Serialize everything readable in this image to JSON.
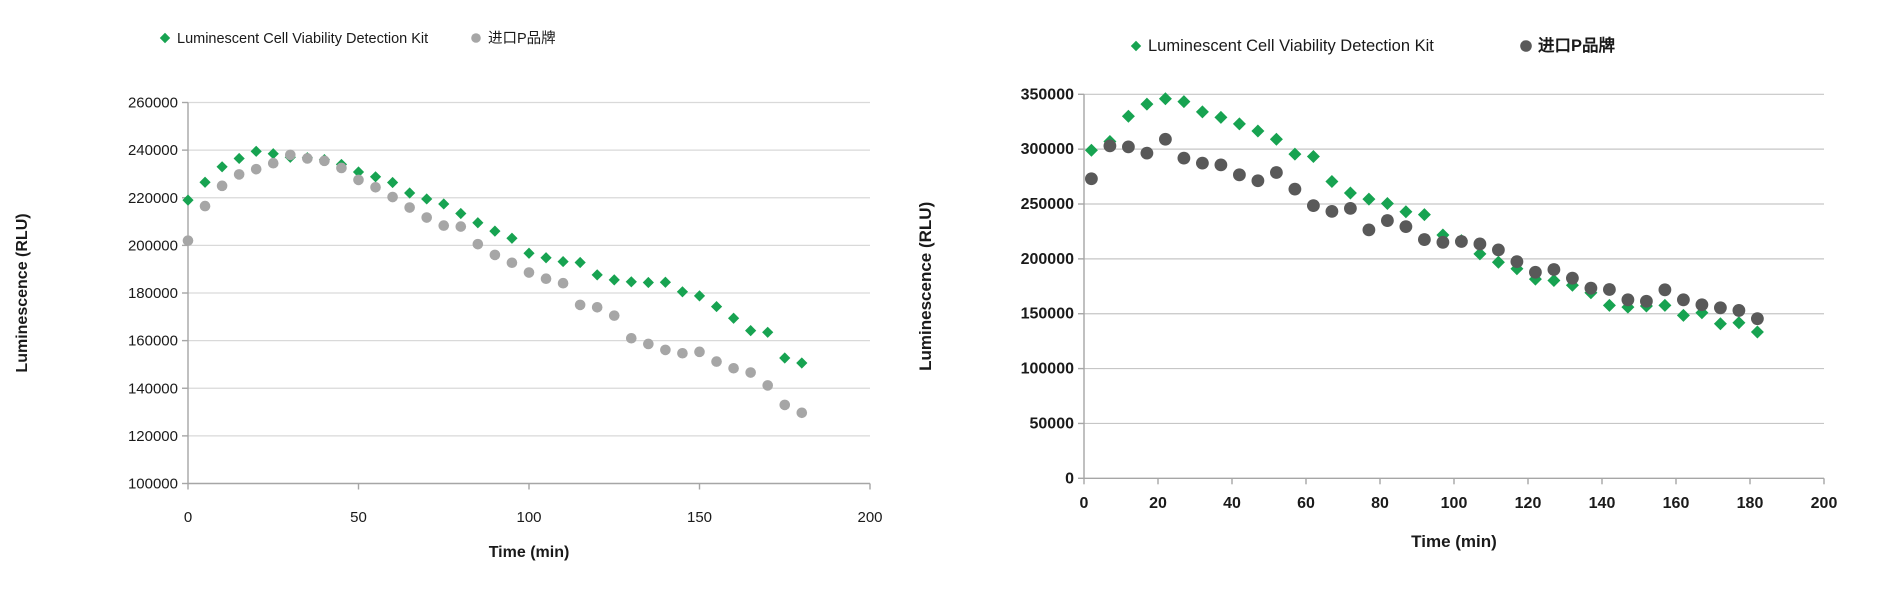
{
  "page": {
    "background": "#ffffff"
  },
  "colors": {
    "green": "#17A351",
    "light_gray": "#A6A6A6",
    "dark_gray": "#595959",
    "gridline_left": "#D9D9D9",
    "gridline_right": "#C6C6C6",
    "axis": "#A6A6A6",
    "text": "#1a1a1a"
  },
  "chart_data": [
    {
      "type": "scatter",
      "title": "",
      "xlabel": "Time (min)",
      "ylabel": "Luminescence (RLU)",
      "xlim": [
        0,
        200
      ],
      "xticks": [
        0,
        50,
        100,
        150,
        200
      ],
      "ylim": [
        100000,
        260000
      ],
      "yticks": [
        100000,
        120000,
        140000,
        160000,
        180000,
        200000,
        220000,
        240000,
        260000
      ],
      "grid": true,
      "legend_position": "top",
      "x": [
        0,
        5,
        10,
        15,
        20,
        25,
        30,
        35,
        40,
        45,
        50,
        55,
        60,
        65,
        70,
        75,
        80,
        85,
        90,
        95,
        100,
        105,
        110,
        115,
        120,
        125,
        130,
        135,
        140,
        145,
        150,
        155,
        160,
        165,
        170,
        175,
        180
      ],
      "series": [
        {
          "name": "Luminescent Cell Viability Detection Kit",
          "marker": "diamond",
          "color": "#17A351",
          "values": [
            219000,
            226500,
            233000,
            236500,
            239500,
            238500,
            237000,
            236800,
            236000,
            234000,
            230800,
            228800,
            226400,
            222000,
            219500,
            217400,
            213400,
            209500,
            206000,
            203000,
            196700,
            194800,
            193200,
            192800,
            187600,
            185500,
            184700,
            184400,
            184500,
            180500,
            178800,
            174300,
            169400,
            164200,
            163500,
            152700,
            150600
          ]
        },
        {
          "name": "进口P品牌",
          "marker": "circle",
          "color": "#A6A6A6",
          "values": [
            202000,
            216500,
            225000,
            229800,
            232000,
            234500,
            238000,
            236500,
            235500,
            232500,
            227500,
            224400,
            220300,
            215900,
            211700,
            208300,
            207900,
            200500,
            196000,
            192700,
            188600,
            186000,
            184100,
            175000,
            174000,
            170500,
            161000,
            158600,
            156100,
            154700,
            155300,
            151200,
            148400,
            146600,
            141200,
            133000,
            129700
          ]
        }
      ]
    },
    {
      "type": "scatter",
      "title": "",
      "xlabel": "Time  (min)",
      "ylabel": "Luminescence  (RLU)",
      "xlim": [
        0,
        200
      ],
      "xticks": [
        0,
        20,
        40,
        60,
        80,
        100,
        120,
        140,
        160,
        180,
        200
      ],
      "ylim": [
        0,
        350000
      ],
      "yticks": [
        0,
        50000,
        100000,
        150000,
        200000,
        250000,
        300000,
        350000
      ],
      "grid": true,
      "legend_position": "top",
      "x": [
        2,
        7,
        12,
        17,
        22,
        27,
        32,
        37,
        42,
        47,
        52,
        57,
        62,
        67,
        72,
        77,
        82,
        87,
        92,
        97,
        102,
        107,
        112,
        117,
        122,
        127,
        132,
        137,
        142,
        147,
        152,
        157,
        162,
        167,
        172,
        177,
        182
      ],
      "series": [
        {
          "name": "Luminescent Cell Viability Detection Kit",
          "marker": "diamond",
          "color": "#17A351",
          "values": [
            299000,
            307000,
            330000,
            341000,
            346000,
            343300,
            334000,
            329000,
            323000,
            316500,
            309000,
            295500,
            293300,
            270500,
            260000,
            254500,
            250500,
            243000,
            240300,
            221800,
            216600,
            204500,
            196900,
            191000,
            181500,
            180300,
            176000,
            169100,
            157600,
            156000,
            157000,
            157600,
            148500,
            150900,
            140900,
            141800,
            133300
          ]
        },
        {
          "name": "进口P品牌",
          "marker": "circle",
          "color": "#595959",
          "values": [
            273000,
            303000,
            302100,
            296400,
            309000,
            291800,
            287300,
            285700,
            276600,
            271200,
            278700,
            263600,
            248500,
            243300,
            246000,
            226400,
            234900,
            229400,
            217600,
            215100,
            215800,
            213600,
            208200,
            197500,
            187800,
            190300,
            182400,
            173300,
            172100,
            162700,
            161400,
            171800,
            162700,
            158200,
            155400,
            153000,
            145500
          ]
        }
      ]
    }
  ]
}
